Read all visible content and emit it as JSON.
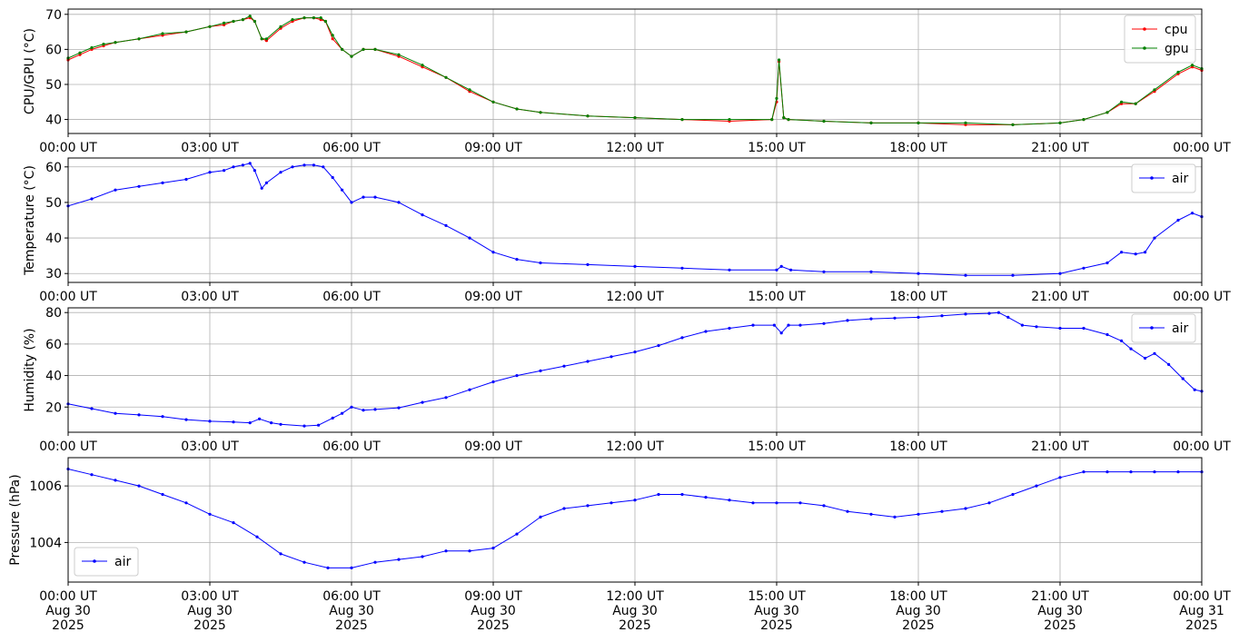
{
  "chart_data": [
    {
      "type": "line",
      "ylabel": "CPU/GPU (°C)",
      "ylim": [
        36,
        71.5
      ],
      "yticks": [
        40,
        50,
        60,
        70
      ],
      "grid": true,
      "legend": "top-right",
      "x_ticks": [
        "00:00 UT",
        "03:00 UT",
        "06:00 UT",
        "09:00 UT",
        "12:00 UT",
        "15:00 UT",
        "18:00 UT",
        "21:00 UT",
        "00:00 UT"
      ],
      "series": [
        {
          "name": "cpu",
          "color": "#ff0000",
          "x": [
            0,
            0.25,
            0.5,
            0.75,
            1,
            1.5,
            2,
            2.5,
            3,
            3.3,
            3.5,
            3.7,
            3.85,
            3.95,
            4.1,
            4.2,
            4.5,
            4.75,
            5,
            5.2,
            5.35,
            5.45,
            5.6,
            5.8,
            6,
            6.25,
            6.5,
            7,
            7.5,
            8,
            8.5,
            9,
            9.5,
            10,
            11,
            12,
            13,
            14,
            14.9,
            15.0,
            15.05,
            15.15,
            15.25,
            16,
            17,
            18,
            19,
            20,
            21,
            21.5,
            22,
            22.3,
            22.6,
            23,
            23.5,
            23.8,
            24
          ],
          "values": [
            57,
            58.5,
            60,
            61,
            62,
            63,
            64,
            65,
            66.5,
            67,
            68,
            68.5,
            69,
            68,
            63,
            62.5,
            66,
            68,
            69,
            69,
            68.5,
            68,
            63,
            60,
            58,
            60,
            60,
            58,
            55,
            52,
            48,
            45,
            43,
            42,
            41,
            40.5,
            40,
            39.5,
            40,
            45,
            56.5,
            40.5,
            40,
            39.5,
            39,
            39,
            38.5,
            38.5,
            39,
            40,
            42,
            44.5,
            44.5,
            48,
            53,
            55,
            54
          ]
        },
        {
          "name": "gpu",
          "color": "#008000",
          "x": [
            0,
            0.25,
            0.5,
            0.75,
            1,
            1.5,
            2,
            2.5,
            3,
            3.3,
            3.5,
            3.7,
            3.85,
            3.95,
            4.1,
            4.2,
            4.5,
            4.75,
            5,
            5.2,
            5.35,
            5.45,
            5.6,
            5.8,
            6,
            6.25,
            6.5,
            7,
            7.5,
            8,
            8.5,
            9,
            9.5,
            10,
            11,
            12,
            13,
            14,
            14.9,
            15.0,
            15.05,
            15.15,
            15.25,
            16,
            17,
            18,
            19,
            20,
            21,
            21.5,
            22,
            22.3,
            22.6,
            23,
            23.5,
            23.8,
            24
          ],
          "values": [
            57.5,
            59,
            60.5,
            61.5,
            62,
            63,
            64.5,
            65,
            66.5,
            67.5,
            68,
            68.5,
            69.5,
            68,
            63,
            63,
            66.5,
            68.5,
            69,
            69,
            69,
            68,
            64,
            60,
            58,
            60,
            60,
            58.5,
            55.5,
            52,
            48.5,
            45,
            43,
            42,
            41,
            40.5,
            40,
            40,
            40,
            46,
            57,
            40.5,
            40,
            39.5,
            39,
            39,
            39,
            38.5,
            39,
            40,
            42,
            45,
            44.5,
            48.5,
            53.5,
            55.5,
            54.5
          ]
        }
      ]
    },
    {
      "type": "line",
      "ylabel": "Temperature (°C)",
      "ylim": [
        27.5,
        62.5
      ],
      "yticks": [
        30,
        40,
        50,
        60
      ],
      "grid": true,
      "legend": "top-right",
      "x_ticks": [
        "00:00 UT",
        "03:00 UT",
        "06:00 UT",
        "09:00 UT",
        "12:00 UT",
        "15:00 UT",
        "18:00 UT",
        "21:00 UT",
        "00:00 UT"
      ],
      "series": [
        {
          "name": "air",
          "color": "#0000ff",
          "x": [
            0,
            0.5,
            1,
            1.5,
            2,
            2.5,
            3,
            3.3,
            3.5,
            3.7,
            3.85,
            3.95,
            4.1,
            4.2,
            4.5,
            4.75,
            5,
            5.2,
            5.4,
            5.6,
            5.8,
            6,
            6.25,
            6.5,
            7,
            7.5,
            8,
            8.5,
            9,
            9.5,
            10,
            11,
            12,
            13,
            14,
            15,
            15.1,
            15.3,
            16,
            17,
            18,
            19,
            20,
            21,
            21.5,
            22,
            22.3,
            22.6,
            22.8,
            23,
            23.5,
            23.8,
            24
          ],
          "values": [
            49,
            51,
            53.5,
            54.5,
            55.5,
            56.5,
            58.5,
            59,
            60,
            60.5,
            61,
            59,
            54,
            55.5,
            58.5,
            60,
            60.5,
            60.5,
            60,
            57,
            53.5,
            50,
            51.5,
            51.5,
            50,
            46.5,
            43.5,
            40,
            36,
            34,
            33,
            32.5,
            32,
            31.5,
            31,
            31,
            32,
            31,
            30.5,
            30.5,
            30,
            29.5,
            29.5,
            30,
            31.5,
            33,
            36,
            35.5,
            36,
            40,
            45,
            47,
            46
          ]
        }
      ]
    },
    {
      "type": "line",
      "ylabel": "Humidity (%)",
      "ylim": [
        4,
        83
      ],
      "yticks": [
        20,
        40,
        60,
        80
      ],
      "grid": true,
      "legend": "top-right",
      "x_ticks": [
        "00:00 UT",
        "03:00 UT",
        "06:00 UT",
        "09:00 UT",
        "12:00 UT",
        "15:00 UT",
        "18:00 UT",
        "21:00 UT",
        "00:00 UT"
      ],
      "series": [
        {
          "name": "air",
          "color": "#0000ff",
          "x": [
            0,
            0.5,
            1,
            1.5,
            2,
            2.5,
            3,
            3.5,
            3.85,
            4.05,
            4.3,
            4.5,
            5,
            5.3,
            5.6,
            5.8,
            6,
            6.25,
            6.5,
            7,
            7.5,
            8,
            8.5,
            9,
            9.5,
            10,
            10.5,
            11,
            11.5,
            12,
            12.5,
            13,
            13.5,
            14,
            14.5,
            14.95,
            15.1,
            15.25,
            15.5,
            16,
            16.5,
            17,
            17.5,
            18,
            18.5,
            19,
            19.5,
            19.7,
            19.9,
            20.2,
            20.5,
            21,
            21.5,
            22,
            22.3,
            22.5,
            22.8,
            23,
            23.3,
            23.6,
            23.85,
            24
          ],
          "values": [
            22,
            19,
            16,
            15,
            14,
            12,
            11,
            10.5,
            10,
            12.5,
            10,
            9,
            8,
            8.5,
            13,
            16,
            20,
            18,
            18.5,
            19.5,
            23,
            26,
            31,
            36,
            40,
            43,
            46,
            49,
            52,
            55,
            59,
            64,
            68,
            70,
            72,
            72,
            67,
            72,
            72,
            73,
            75,
            76,
            76.5,
            77,
            78,
            79,
            79.5,
            80,
            77,
            72,
            71,
            70,
            70,
            66,
            62,
            57,
            51,
            54,
            47,
            38,
            31,
            30
          ]
        }
      ]
    },
    {
      "type": "scatter",
      "ylabel": "Pressure (hPa)",
      "ylim": [
        1002.6,
        1007
      ],
      "yticks": [
        1004,
        1006
      ],
      "grid": true,
      "legend": "bottom-left",
      "x_ticks": [
        "00:00 UT\nAug 30\n2025",
        "03:00 UT\nAug 30\n2025",
        "06:00 UT\nAug 30\n2025",
        "09:00 UT\nAug 30\n2025",
        "12:00 UT\nAug 30\n2025",
        "15:00 UT\nAug 30\n2025",
        "18:00 UT\nAug 30\n2025",
        "21:00 UT\nAug 30\n2025",
        "00:00 UT\nAug 31\n2025"
      ],
      "series": [
        {
          "name": "air",
          "color": "#0000ff",
          "x": [
            0,
            0.5,
            1,
            1.5,
            2,
            2.5,
            3,
            3.5,
            4,
            4.5,
            5,
            5.5,
            6,
            6.5,
            7,
            7.5,
            8,
            8.5,
            9,
            9.5,
            10,
            10.5,
            11,
            11.5,
            12,
            12.5,
            13,
            13.5,
            14,
            14.5,
            15,
            15.5,
            16,
            16.5,
            17,
            17.5,
            18,
            18.5,
            19,
            19.5,
            20,
            20.5,
            21,
            21.5,
            22,
            22.5,
            23,
            23.5,
            24
          ],
          "values": [
            1006.6,
            1006.4,
            1006.2,
            1006.0,
            1005.7,
            1005.4,
            1005.0,
            1004.7,
            1004.2,
            1003.6,
            1003.3,
            1003.1,
            1003.1,
            1003.3,
            1003.4,
            1003.5,
            1003.7,
            1003.7,
            1003.8,
            1004.3,
            1004.9,
            1005.2,
            1005.3,
            1005.4,
            1005.5,
            1005.7,
            1005.7,
            1005.6,
            1005.5,
            1005.4,
            1005.4,
            1005.4,
            1005.3,
            1005.1,
            1005.0,
            1004.9,
            1005.0,
            1005.1,
            1005.2,
            1005.4,
            1005.7,
            1006.0,
            1006.3,
            1006.5,
            1006.5,
            1006.5,
            1006.5,
            1006.5,
            1006.5
          ]
        }
      ]
    }
  ]
}
